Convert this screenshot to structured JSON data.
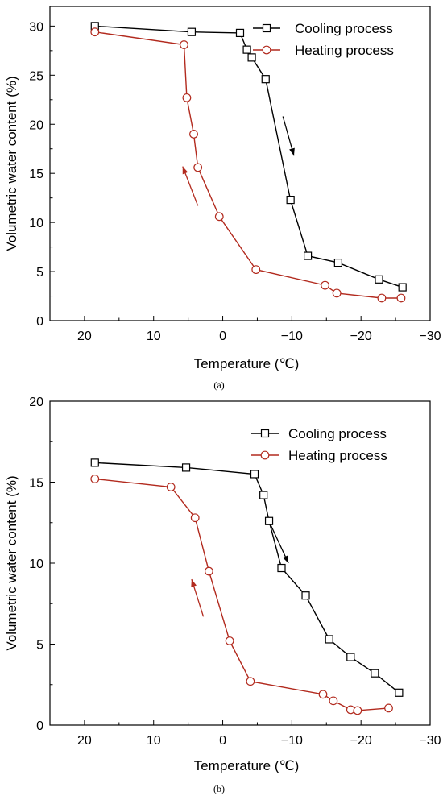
{
  "colors": {
    "cooling": "#000000",
    "heating": "#b22a1e",
    "heating_marker_fill": "#ffffff",
    "cooling_marker_fill": "#ffffff"
  },
  "chart_data": [
    {
      "type": "line",
      "caption": "(a)",
      "xlabel": "Temperature (℃)",
      "ylabel": "Volumetric water content (%)",
      "xlim": [
        25,
        -30
      ],
      "ylim": [
        0,
        32
      ],
      "xticks": [
        20,
        10,
        0,
        -10,
        -20,
        -30
      ],
      "yticks": [
        0,
        5,
        10,
        15,
        20,
        25,
        30
      ],
      "xtick_labels": [
        "20",
        "10",
        "0",
        "−10",
        "−20",
        "−30"
      ],
      "ytick_labels": [
        "0",
        "5",
        "10",
        "15",
        "20",
        "25",
        "30"
      ],
      "legend_position": "top-right",
      "series": [
        {
          "name": "Cooling process",
          "marker": "square",
          "color_key": "cooling",
          "x": [
            18.5,
            4.5,
            -2.5,
            -3.5,
            -4.2,
            -6.2,
            -9.8,
            -12.3,
            -16.7,
            -22.6,
            -26.0
          ],
          "y": [
            30.0,
            29.4,
            29.3,
            27.6,
            26.8,
            24.6,
            12.3,
            6.6,
            5.9,
            4.2,
            3.4
          ]
        },
        {
          "name": "Heating process",
          "marker": "circle",
          "color_key": "heating",
          "x": [
            18.5,
            5.6,
            5.2,
            4.2,
            3.6,
            0.5,
            -4.8,
            -14.8,
            -16.5,
            -23.0,
            -25.8
          ],
          "y": [
            29.4,
            28.1,
            22.7,
            19.0,
            15.6,
            10.6,
            5.2,
            3.6,
            2.8,
            2.3,
            2.3
          ]
        }
      ],
      "annotations": [
        {
          "type": "arrow",
          "color_key": "cooling",
          "from": [
            -8.7,
            20.8
          ],
          "to": [
            -10.3,
            16.8
          ]
        },
        {
          "type": "arrow",
          "color_key": "heating",
          "from": [
            3.6,
            11.7
          ],
          "to": [
            5.8,
            15.7
          ]
        }
      ]
    },
    {
      "type": "line",
      "caption": "(b)",
      "xlabel": "Temperature (℃)",
      "ylabel": "Volumetric water content (%)",
      "xlim": [
        25,
        -30
      ],
      "ylim": [
        0,
        20
      ],
      "xticks": [
        20,
        10,
        0,
        -10,
        -20,
        -30
      ],
      "yticks": [
        0,
        5,
        10,
        15,
        20
      ],
      "xtick_labels": [
        "20",
        "10",
        "0",
        "−10",
        "−20",
        "−30"
      ],
      "ytick_labels": [
        "0",
        "5",
        "10",
        "15",
        "20"
      ],
      "legend_position": "top-right",
      "series": [
        {
          "name": "Cooling process",
          "marker": "square",
          "color_key": "cooling",
          "x": [
            18.5,
            5.3,
            -4.6,
            -5.9,
            -6.7,
            -8.5,
            -12.0,
            -15.4,
            -18.5,
            -22.0,
            -25.5
          ],
          "y": [
            16.2,
            15.9,
            15.5,
            14.2,
            12.6,
            9.7,
            8.0,
            5.3,
            4.2,
            3.2,
            2.0
          ],
          "_x": [
            18.5,
            5.3,
            -4.6,
            -5.9,
            -6.7,
            -8.5,
            -12.0,
            -15.4,
            -18.5,
            -22.0,
            -25.5
          ]
        },
        {
          "name": "Heating process",
          "marker": "circle",
          "color_key": "heating",
          "x": [
            18.5,
            7.5,
            4.0,
            2.0,
            -1.0,
            -4.0,
            -14.5,
            -16.0,
            -18.5,
            -19.5,
            -24.0
          ],
          "y": [
            15.2,
            14.7,
            12.8,
            9.5,
            5.2,
            2.7,
            1.9,
            1.5,
            0.95,
            0.9,
            1.05
          ]
        }
      ],
      "annotations": [
        {
          "type": "arrow",
          "color_key": "cooling",
          "from": [
            -7.0,
            12.3
          ],
          "to": [
            -9.5,
            10.0
          ]
        },
        {
          "type": "arrow",
          "color_key": "heating",
          "from": [
            2.8,
            6.7
          ],
          "to": [
            4.5,
            9.0
          ]
        }
      ]
    }
  ]
}
